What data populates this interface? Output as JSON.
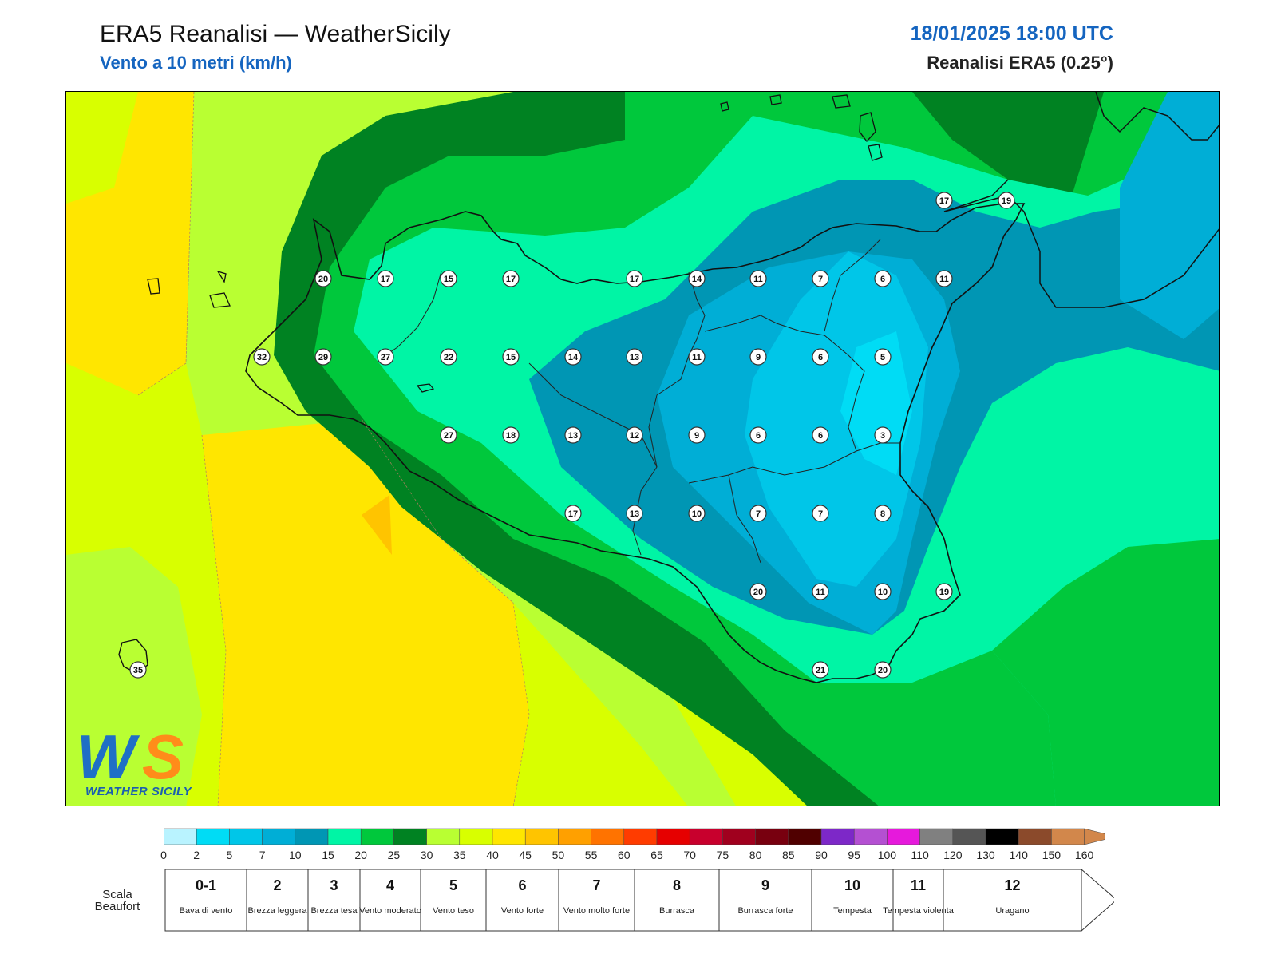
{
  "header": {
    "title": "ERA5 Reanalisi — WeatherSicily",
    "subtitle": "Vento a 10 metri (km/h)",
    "datetime": "18/01/2025 18:00 UTC",
    "source": "Reanalisi ERA5 (0.25°)"
  },
  "logo": {
    "text": "WEATHER SICILY",
    "letters": "WS"
  },
  "colors": {
    "title_blue": "#1565c0",
    "band_0": "#b9f3ff",
    "band_2": "#00dcf5",
    "band_5": "#00c6e8",
    "band_7": "#00aed6",
    "band_10": "#0096b4",
    "band_15": "#00f5a5",
    "band_20": "#00c83c",
    "band_25": "#008222",
    "band_30": "#b9ff32",
    "band_35": "#d8ff00",
    "band_40": "#ffe600",
    "band_45": "#ffc400"
  },
  "wind_points": [
    {
      "v": 20
    },
    {
      "v": 17
    },
    {
      "v": 15
    },
    {
      "v": 17
    },
    {
      "v": 17
    },
    {
      "v": 14
    },
    {
      "v": 11
    },
    {
      "v": 7
    },
    {
      "v": 6
    },
    {
      "v": 11
    },
    {
      "v": 32
    },
    {
      "v": 29
    },
    {
      "v": 27
    },
    {
      "v": 22
    },
    {
      "v": 15
    },
    {
      "v": 14
    },
    {
      "v": 13
    },
    {
      "v": 11
    },
    {
      "v": 9
    },
    {
      "v": 6
    },
    {
      "v": 5
    },
    {
      "v": 27
    },
    {
      "v": 18
    },
    {
      "v": 13
    },
    {
      "v": 12
    },
    {
      "v": 9
    },
    {
      "v": 6
    },
    {
      "v": 6
    },
    {
      "v": 3
    },
    {
      "v": 17
    },
    {
      "v": 13
    },
    {
      "v": 10
    },
    {
      "v": 7
    },
    {
      "v": 7
    },
    {
      "v": 8
    },
    {
      "v": 20
    },
    {
      "v": 11
    },
    {
      "v": 10
    },
    {
      "v": 19
    },
    {
      "v": 21
    },
    {
      "v": 20
    },
    {
      "v": 17
    },
    {
      "v": 19
    },
    {
      "v": 35
    }
  ],
  "colorbar": {
    "ticks": [
      "0",
      "2",
      "5",
      "7",
      "10",
      "15",
      "20",
      "25",
      "30",
      "35",
      "40",
      "45",
      "50",
      "55",
      "60",
      "65",
      "70",
      "75",
      "80",
      "85",
      "90",
      "95",
      "100",
      "110",
      "120",
      "130",
      "140",
      "150",
      "160"
    ],
    "colors": [
      "#b9f3ff",
      "#00dcf5",
      "#00c6e8",
      "#00aed6",
      "#0096b4",
      "#00f5a5",
      "#00c83c",
      "#008222",
      "#b9ff32",
      "#d8ff00",
      "#ffe600",
      "#ffc400",
      "#ffa000",
      "#ff7300",
      "#ff3c00",
      "#e60000",
      "#c8002d",
      "#a0001e",
      "#78000f",
      "#500000",
      "#7d28c8",
      "#b450d2",
      "#e619dc",
      "#808080",
      "#555555",
      "#000000",
      "#8b4a2b",
      "#d2874b"
    ]
  },
  "beaufort": {
    "caption": "Scala Beaufort",
    "levels": [
      {
        "num": "0-1",
        "name": "Bava di vento"
      },
      {
        "num": "2",
        "name": "Brezza leggera"
      },
      {
        "num": "3",
        "name": "Brezza tesa"
      },
      {
        "num": "4",
        "name": "Vento moderato"
      },
      {
        "num": "5",
        "name": "Vento teso"
      },
      {
        "num": "6",
        "name": "Vento forte"
      },
      {
        "num": "7",
        "name": "Vento molto forte"
      },
      {
        "num": "8",
        "name": "Burrasca"
      },
      {
        "num": "9",
        "name": "Burrasca forte"
      },
      {
        "num": "10",
        "name": "Tempesta"
      },
      {
        "num": "11",
        "name": "Tempesta violenta"
      },
      {
        "num": "12",
        "name": "Uragano"
      }
    ]
  }
}
